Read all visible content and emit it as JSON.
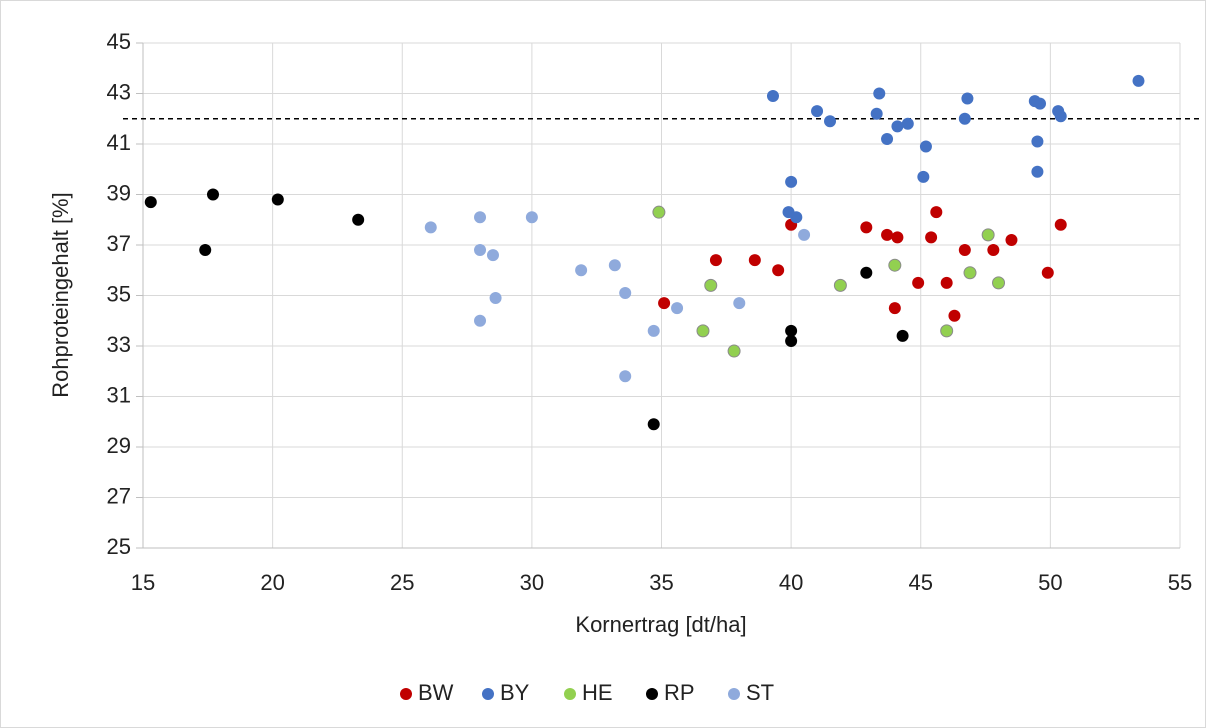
{
  "chart_data": {
    "type": "scatter",
    "xlabel": "Kornertrag [dt/ha]",
    "ylabel": "Rohproteingehalt [%]",
    "xlim": [
      15,
      55
    ],
    "xticks": [
      15,
      20,
      25,
      30,
      35,
      40,
      45,
      50,
      55
    ],
    "ylim": [
      25,
      45
    ],
    "yticks": [
      25,
      27,
      29,
      31,
      33,
      35,
      37,
      39,
      41,
      43,
      45
    ],
    "grid": true,
    "legend": "bottom",
    "hline": 42,
    "series": [
      {
        "name": "BW",
        "color": "#c00000",
        "x": [
          35.1,
          37.1,
          38.6,
          39.5,
          40.0,
          42.9,
          43.7,
          44.1,
          45.6,
          45.4,
          44.9,
          44.0,
          46.0,
          46.3,
          46.7,
          47.8,
          48.5,
          49.9,
          50.4
        ],
        "values": [
          34.7,
          36.4,
          36.4,
          36.0,
          37.8,
          37.7,
          37.4,
          37.3,
          38.3,
          37.3,
          35.5,
          34.5,
          35.5,
          34.2,
          36.8,
          36.8,
          37.2,
          35.9,
          37.8
        ]
      },
      {
        "name": "BY",
        "color": "#4472c4",
        "x": [
          39.3,
          41.0,
          41.5,
          43.4,
          43.3,
          44.5,
          44.1,
          43.7,
          45.2,
          45.1,
          46.8,
          46.7,
          49.4,
          49.6,
          49.5,
          49.5,
          50.3,
          50.4,
          53.4,
          40.0,
          39.9,
          40.2
        ],
        "values": [
          42.9,
          42.3,
          41.9,
          43.0,
          42.2,
          41.8,
          41.7,
          41.2,
          40.9,
          39.7,
          42.8,
          42.0,
          42.7,
          42.6,
          41.1,
          39.9,
          42.3,
          42.1,
          43.5,
          39.5,
          38.3,
          38.1
        ]
      },
      {
        "name": "HE",
        "color": "#92d050",
        "x": [
          34.9,
          36.9,
          36.6,
          37.8,
          41.9,
          44.0,
          46.0,
          47.6,
          46.9,
          48.0
        ],
        "values": [
          38.3,
          35.4,
          33.6,
          32.8,
          35.4,
          36.2,
          33.6,
          37.4,
          35.9,
          35.5
        ]
      },
      {
        "name": "RP",
        "color": "#000000",
        "x": [
          15.3,
          17.4,
          17.7,
          20.2,
          23.3,
          34.7,
          40.0,
          40.0,
          42.9,
          44.3
        ],
        "values": [
          38.7,
          36.8,
          39.0,
          38.8,
          38.0,
          29.9,
          33.6,
          33.2,
          35.9,
          33.4
        ]
      },
      {
        "name": "ST",
        "color": "#8faadc",
        "x": [
          26.1,
          28.0,
          28.0,
          28.5,
          28.6,
          28.0,
          30.0,
          31.9,
          33.2,
          33.6,
          33.6,
          34.7,
          35.6,
          38.0,
          40.5
        ],
        "values": [
          37.7,
          38.1,
          36.8,
          36.6,
          34.9,
          34.0,
          38.1,
          36.0,
          36.2,
          35.1,
          31.8,
          33.6,
          34.5,
          34.7,
          37.4
        ]
      }
    ]
  }
}
